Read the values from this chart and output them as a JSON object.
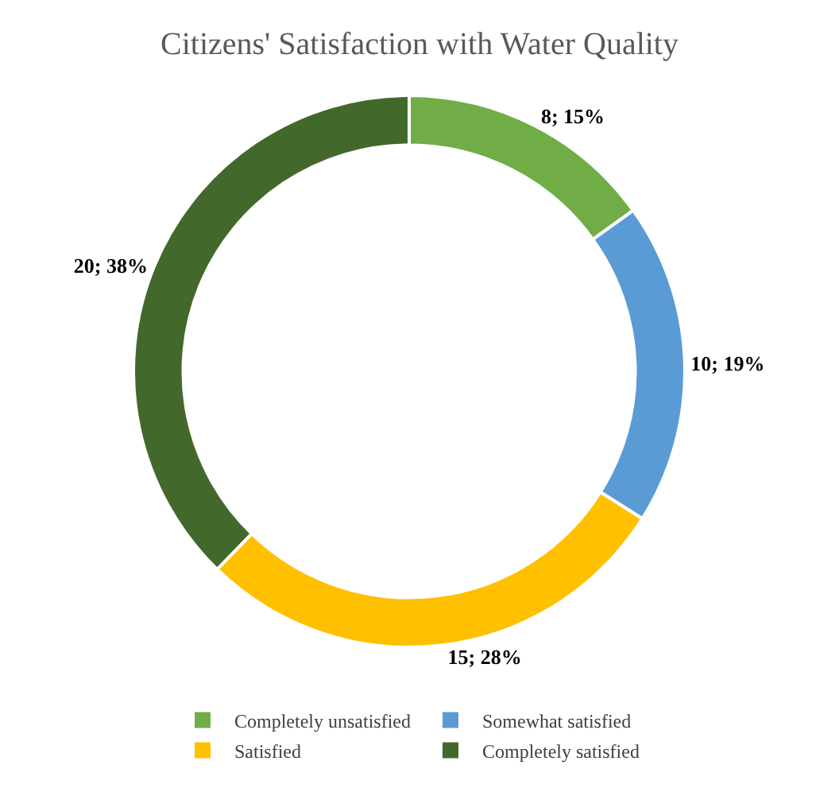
{
  "chart_data": {
    "type": "donut",
    "title": "Citizens' Satisfaction with Water Quality",
    "categories": [
      "Completely unsatisfied",
      "Somewhat satisfied",
      "Satisfied",
      "Completely satisfied"
    ],
    "values": [
      8,
      10,
      15,
      20
    ],
    "value_labels": [
      "8; 15%",
      "10; 19%",
      "15; 28%",
      "20; 38%"
    ],
    "colors": [
      "#70ad47",
      "#5b9bd5",
      "#ffc000",
      "#43682b"
    ],
    "legend": "bottom"
  }
}
